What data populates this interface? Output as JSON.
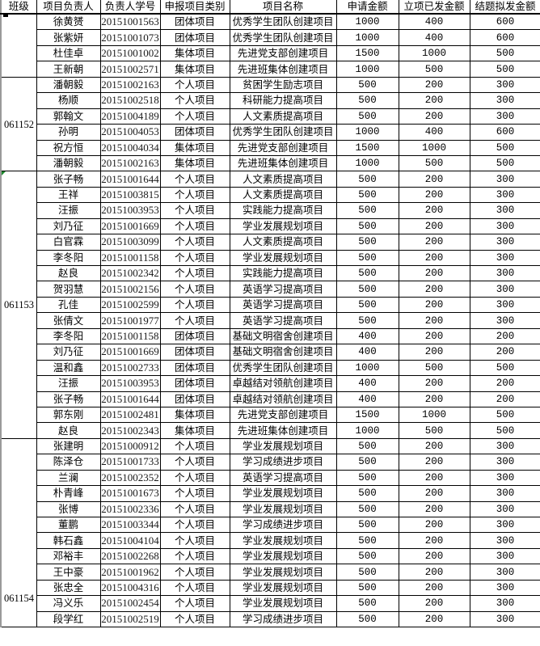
{
  "columns": [
    "班级",
    "项目负责人",
    "负责人学号",
    "申报项目类别",
    "项目名称",
    "申请金额",
    "立项已发金额",
    "结题拟发金额"
  ],
  "groups": [
    {
      "class": "",
      "rows": [
        [
          "徐黄赟",
          "20151001563",
          "团体项目",
          "优秀学生团队创建项目",
          "1000",
          "400",
          "600"
        ],
        [
          "张紫妍",
          "20151001073",
          "团体项目",
          "优秀学生团队创建项目",
          "1000",
          "400",
          "600"
        ],
        [
          "杜佳卓",
          "20151001002",
          "集体项目",
          "先进党支部创建项目",
          "1500",
          "1000",
          "500"
        ],
        [
          "王新朝",
          "20151002571",
          "集体项目",
          "先进班集体创建项目",
          "1000",
          "500",
          "500"
        ]
      ]
    },
    {
      "class": "061152",
      "rows": [
        [
          "潘朝毅",
          "20151002163",
          "个人项目",
          "贫困学生励志项目",
          "500",
          "200",
          "300"
        ],
        [
          "杨顺",
          "20151002518",
          "个人项目",
          "科研能力提高项目",
          "500",
          "200",
          "300"
        ],
        [
          "郭翰文",
          "20151004189",
          "个人项目",
          "人文素质提高项目",
          "500",
          "200",
          "300"
        ],
        [
          "孙明",
          "20151004053",
          "团体项目",
          "优秀学生团队创建项目",
          "1000",
          "400",
          "600"
        ],
        [
          "祝方恒",
          "20151004034",
          "集体项目",
          "先进党支部创建项目",
          "1500",
          "1000",
          "500"
        ],
        [
          "潘朝毅",
          "20151002163",
          "集体项目",
          "先进班集体创建项目",
          "1000",
          "500",
          "500"
        ]
      ]
    },
    {
      "class": "061153",
      "rows": [
        [
          "张子畅",
          "20151001644",
          "个人项目",
          "人文素质提高项目",
          "500",
          "200",
          "300"
        ],
        [
          "王祥",
          "20151003815",
          "个人项目",
          "人文素质提高项目",
          "500",
          "200",
          "300"
        ],
        [
          "汪振",
          "20151003953",
          "个人项目",
          "实践能力提高项目",
          "500",
          "200",
          "300"
        ],
        [
          "刘乃征",
          "20151001669",
          "个人项目",
          "学业发展规划项目",
          "500",
          "200",
          "300"
        ],
        [
          "白官霖",
          "20151003099",
          "个人项目",
          "人文素质提高项目",
          "500",
          "200",
          "300"
        ],
        [
          "李冬阳",
          "20151001158",
          "个人项目",
          "学业发展规划项目",
          "500",
          "200",
          "300"
        ],
        [
          "赵良",
          "20151002342",
          "个人项目",
          "实践能力提高项目",
          "500",
          "200",
          "300"
        ],
        [
          "贺羽慧",
          "20151002156",
          "个人项目",
          "英语学习提高项目",
          "500",
          "200",
          "300"
        ],
        [
          "孔佳",
          "20151002599",
          "个人项目",
          "英语学习提高项目",
          "500",
          "200",
          "300"
        ],
        [
          "张倩文",
          "20151001977",
          "个人项目",
          "英语学习提高项目",
          "500",
          "200",
          "300"
        ],
        [
          "李冬阳",
          "20151001158",
          "团体项目",
          "基础文明宿舍创建项目",
          "400",
          "200",
          "200"
        ],
        [
          "刘乃征",
          "20151001669",
          "团体项目",
          "基础文明宿舍创建项目",
          "400",
          "200",
          "200"
        ],
        [
          "温和鑫",
          "20151002733",
          "团体项目",
          "优秀学生团队创建项目",
          "1000",
          "500",
          "500"
        ],
        [
          "汪振",
          "20151003953",
          "团体项目",
          "卓越结对领航创建项目",
          "400",
          "200",
          "200"
        ],
        [
          "张子畅",
          "20151001644",
          "团体项目",
          "卓越结对领航创建项目",
          "400",
          "200",
          "200"
        ],
        [
          "郭东刚",
          "20151002481",
          "集体项目",
          "先进党支部创建项目",
          "1500",
          "1000",
          "500"
        ],
        [
          "赵良",
          "20151002343",
          "集体项目",
          "先进班集体创建项目",
          "1000",
          "500",
          "500"
        ]
      ]
    },
    {
      "class": "061154",
      "rows": [
        [
          "张建明",
          "20151000912",
          "个人项目",
          "学业发展规划项目",
          "500",
          "200",
          "300"
        ],
        [
          "陈泽仓",
          "20151001733",
          "个人项目",
          "学习成绩进步项目",
          "500",
          "200",
          "300"
        ],
        [
          "兰澜",
          "20151002352",
          "个人项目",
          "英语学习提高项目",
          "500",
          "200",
          "300"
        ],
        [
          "朴青峰",
          "20151001673",
          "个人项目",
          "学业发展规划项目",
          "500",
          "200",
          "300"
        ],
        [
          "张博",
          "20151002336",
          "个人项目",
          "学业发展规划项目",
          "500",
          "200",
          "300"
        ],
        [
          "董鹏",
          "20151003344",
          "个人项目",
          "学习成绩进步项目",
          "500",
          "200",
          "300"
        ],
        [
          "韩石鑫",
          "20151004104",
          "个人项目",
          "学业发展规划项目",
          "500",
          "200",
          "300"
        ],
        [
          "邓裕丰",
          "20151002268",
          "个人项目",
          "学业发展规划项目",
          "500",
          "200",
          "300"
        ],
        [
          "王中豪",
          "20151001962",
          "个人项目",
          "学业发展规划项目",
          "500",
          "200",
          "300"
        ],
        [
          "张忠全",
          "20151004316",
          "个人项目",
          "学业发展规划项目",
          "500",
          "200",
          "300"
        ],
        [
          "冯义乐",
          "20151002454",
          "个人项目",
          "学业发展规划项目",
          "500",
          "200",
          "300"
        ],
        [
          "段学红",
          "20151002519",
          "个人项目",
          "学习成绩进步项目",
          "500",
          "200",
          "300"
        ]
      ]
    }
  ],
  "colors": {
    "grid": "#000000",
    "note_marker": "#1e8a2e"
  }
}
